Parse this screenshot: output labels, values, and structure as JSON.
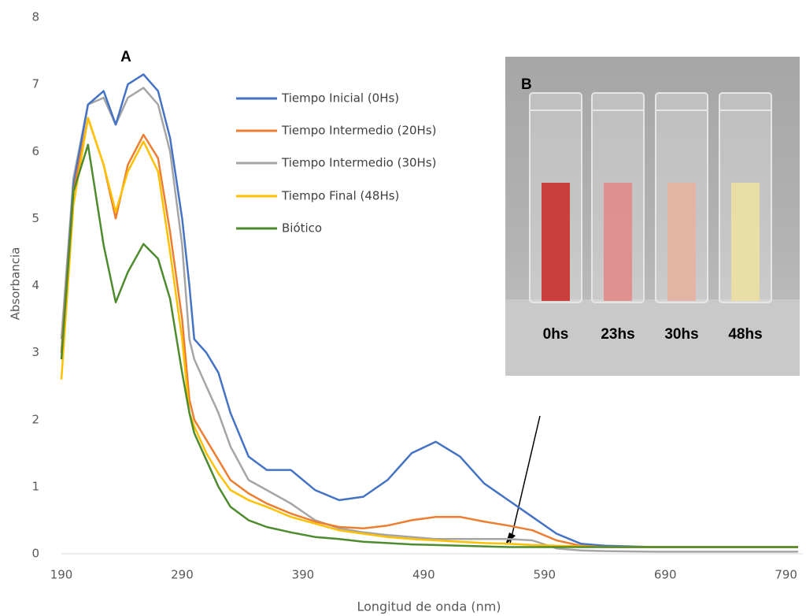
{
  "chart_data": {
    "type": "line",
    "panel_label": "A",
    "x_label": "Longitud de onda (nm)",
    "y_label": "Absorbancia",
    "x": [
      190,
      200,
      212,
      225,
      235,
      245,
      258,
      270,
      280,
      290,
      296,
      300,
      310,
      320,
      330,
      345,
      360,
      380,
      400,
      420,
      440,
      460,
      480,
      500,
      520,
      540,
      560,
      580,
      600,
      620,
      640,
      680,
      720,
      760,
      800
    ],
    "series": [
      {
        "name": "Tiempo Inicial (0Hs)",
        "color": "#4472c4",
        "values": [
          3.0,
          5.5,
          6.7,
          6.9,
          6.4,
          7.0,
          7.15,
          6.9,
          6.2,
          5.0,
          4.0,
          3.2,
          3.0,
          2.7,
          2.1,
          1.45,
          1.25,
          1.25,
          0.95,
          0.8,
          0.85,
          1.1,
          1.5,
          1.67,
          1.45,
          1.05,
          0.8,
          0.55,
          0.3,
          0.15,
          0.12,
          0.1,
          0.1,
          0.1,
          0.1
        ]
      },
      {
        "name": "Tiempo Intermedio (20Hs)",
        "color": "#ed7d31",
        "values": [
          3.0,
          5.4,
          6.5,
          5.8,
          5.0,
          5.8,
          6.25,
          5.9,
          4.8,
          3.5,
          2.3,
          2.0,
          1.7,
          1.4,
          1.1,
          0.9,
          0.75,
          0.6,
          0.48,
          0.4,
          0.38,
          0.42,
          0.5,
          0.55,
          0.55,
          0.48,
          0.42,
          0.35,
          0.2,
          0.12,
          0.1,
          0.1,
          0.1,
          0.1,
          0.1
        ]
      },
      {
        "name": "Tiempo Intermedio (30Hs)",
        "color": "#a5a5a5",
        "values": [
          3.2,
          5.6,
          6.7,
          6.8,
          6.4,
          6.8,
          6.95,
          6.7,
          6.0,
          4.6,
          3.2,
          2.9,
          2.5,
          2.1,
          1.6,
          1.1,
          0.95,
          0.75,
          0.5,
          0.38,
          0.32,
          0.28,
          0.25,
          0.22,
          0.22,
          0.22,
          0.22,
          0.2,
          0.08,
          0.05,
          0.04,
          0.03,
          0.03,
          0.03,
          0.03
        ]
      },
      {
        "name": "Tiempo Final (48Hs)",
        "color": "#ffc000",
        "values": [
          2.6,
          5.2,
          6.5,
          5.8,
          5.1,
          5.7,
          6.15,
          5.7,
          4.5,
          3.2,
          2.1,
          1.9,
          1.5,
          1.2,
          0.95,
          0.8,
          0.7,
          0.55,
          0.45,
          0.35,
          0.3,
          0.25,
          0.22,
          0.2,
          0.18,
          0.16,
          0.15,
          0.13,
          0.12,
          0.11,
          0.1,
          0.1,
          0.1,
          0.1,
          0.1
        ]
      },
      {
        "name": "Biótico",
        "color": "#4e8a2e",
        "values": [
          2.9,
          5.4,
          6.1,
          4.6,
          3.75,
          4.2,
          4.62,
          4.4,
          3.8,
          2.7,
          2.1,
          1.8,
          1.4,
          1.0,
          0.7,
          0.5,
          0.4,
          0.32,
          0.25,
          0.22,
          0.18,
          0.16,
          0.14,
          0.13,
          0.12,
          0.11,
          0.1,
          0.1,
          0.1,
          0.1,
          0.1,
          0.1,
          0.1,
          0.1,
          0.1
        ]
      }
    ],
    "xlim": [
      190,
      800
    ],
    "ylim": [
      0,
      8
    ],
    "xticks": [
      190,
      290,
      390,
      490,
      590,
      690,
      790
    ],
    "yticks": [
      0,
      1,
      2,
      3,
      4,
      5,
      6,
      7,
      8
    ],
    "grid": false,
    "inset": {
      "label": "B",
      "captions": [
        "0hs",
        "23hs",
        "30hs",
        "48hs"
      ]
    }
  }
}
